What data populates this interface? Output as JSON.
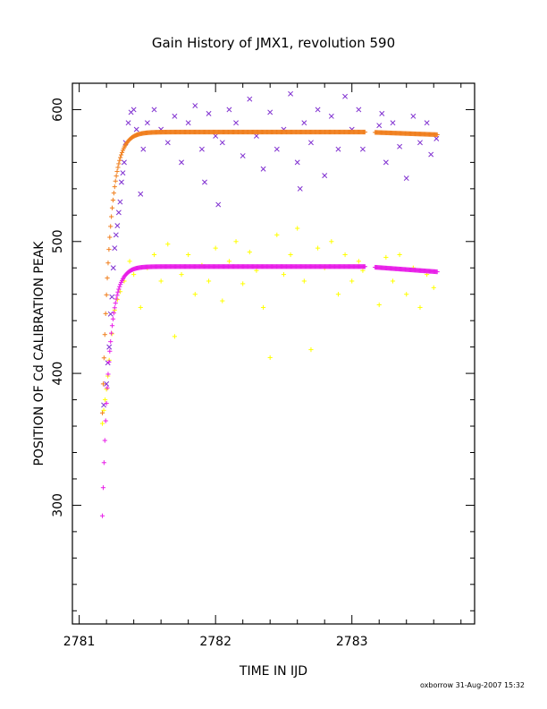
{
  "chart_data": {
    "type": "scatter",
    "title": "Gain History of JMX1, revolution 590",
    "xlabel": "TIME IN IJD",
    "ylabel": "POSITION OF Cd CALIBRATION PEAK",
    "xlim": [
      2780.95,
      2783.9
    ],
    "ylim": [
      210,
      620
    ],
    "xticks": [
      2781,
      2782,
      2783
    ],
    "yticks": [
      300,
      400,
      500,
      600
    ],
    "grid": false,
    "series": [
      {
        "marker": "x",
        "color": "#7f2fd0",
        "points": [
          [
            2781.18,
            376
          ],
          [
            2781.2,
            392
          ],
          [
            2781.21,
            408
          ],
          [
            2781.22,
            420
          ],
          [
            2781.23,
            445
          ],
          [
            2781.24,
            458
          ],
          [
            2781.25,
            480
          ],
          [
            2781.26,
            495
          ],
          [
            2781.27,
            505
          ],
          [
            2781.28,
            512
          ],
          [
            2781.29,
            522
          ],
          [
            2781.3,
            530
          ],
          [
            2781.31,
            545
          ],
          [
            2781.32,
            552
          ],
          [
            2781.33,
            560
          ],
          [
            2781.34,
            575
          ],
          [
            2781.36,
            590
          ],
          [
            2781.38,
            598
          ],
          [
            2781.4,
            600
          ],
          [
            2781.42,
            585
          ],
          [
            2781.45,
            536
          ],
          [
            2781.47,
            570
          ],
          [
            2781.5,
            590
          ],
          [
            2781.55,
            600
          ],
          [
            2781.6,
            585
          ],
          [
            2781.65,
            575
          ],
          [
            2781.7,
            595
          ],
          [
            2781.75,
            560
          ],
          [
            2781.8,
            590
          ],
          [
            2781.85,
            603
          ],
          [
            2781.9,
            570
          ],
          [
            2781.92,
            545
          ],
          [
            2781.95,
            597
          ],
          [
            2782.0,
            580
          ],
          [
            2782.02,
            528
          ],
          [
            2782.05,
            575
          ],
          [
            2782.1,
            600
          ],
          [
            2782.15,
            590
          ],
          [
            2782.2,
            565
          ],
          [
            2782.25,
            608
          ],
          [
            2782.3,
            580
          ],
          [
            2782.35,
            555
          ],
          [
            2782.4,
            598
          ],
          [
            2782.45,
            570
          ],
          [
            2782.5,
            585
          ],
          [
            2782.55,
            612
          ],
          [
            2782.6,
            560
          ],
          [
            2782.62,
            540
          ],
          [
            2782.65,
            590
          ],
          [
            2782.7,
            575
          ],
          [
            2782.75,
            600
          ],
          [
            2782.8,
            550
          ],
          [
            2782.85,
            595
          ],
          [
            2782.9,
            570
          ],
          [
            2782.95,
            610
          ],
          [
            2783.0,
            585
          ],
          [
            2783.05,
            600
          ],
          [
            2783.08,
            570
          ],
          [
            2783.2,
            588
          ],
          [
            2783.22,
            597
          ],
          [
            2783.25,
            560
          ],
          [
            2783.3,
            590
          ],
          [
            2783.35,
            572
          ],
          [
            2783.4,
            548
          ],
          [
            2783.45,
            595
          ],
          [
            2783.5,
            575
          ],
          [
            2783.55,
            590
          ],
          [
            2783.58,
            566
          ],
          [
            2783.62,
            578
          ]
        ]
      },
      {
        "marker": "+",
        "color": "#ffff00",
        "points": [
          [
            2781.17,
            362
          ],
          [
            2781.18,
            372
          ],
          [
            2781.19,
            380
          ],
          [
            2781.2,
            388
          ],
          [
            2781.21,
            398
          ],
          [
            2781.22,
            410
          ],
          [
            2781.24,
            430
          ],
          [
            2781.26,
            448
          ],
          [
            2781.28,
            456
          ],
          [
            2781.3,
            462
          ],
          [
            2781.33,
            470
          ],
          [
            2781.37,
            485
          ],
          [
            2781.4,
            475
          ],
          [
            2781.45,
            450
          ],
          [
            2781.5,
            480
          ],
          [
            2781.55,
            490
          ],
          [
            2781.6,
            470
          ],
          [
            2781.65,
            498
          ],
          [
            2781.7,
            428
          ],
          [
            2781.75,
            475
          ],
          [
            2781.8,
            490
          ],
          [
            2781.85,
            460
          ],
          [
            2781.9,
            482
          ],
          [
            2781.95,
            470
          ],
          [
            2782.0,
            495
          ],
          [
            2782.05,
            455
          ],
          [
            2782.1,
            485
          ],
          [
            2782.15,
            500
          ],
          [
            2782.2,
            468
          ],
          [
            2782.25,
            492
          ],
          [
            2782.3,
            478
          ],
          [
            2782.35,
            450
          ],
          [
            2782.4,
            412
          ],
          [
            2782.45,
            505
          ],
          [
            2782.5,
            475
          ],
          [
            2782.55,
            490
          ],
          [
            2782.6,
            510
          ],
          [
            2782.65,
            470
          ],
          [
            2782.7,
            418
          ],
          [
            2782.75,
            495
          ],
          [
            2782.8,
            480
          ],
          [
            2782.85,
            500
          ],
          [
            2782.9,
            460
          ],
          [
            2782.95,
            490
          ],
          [
            2783.0,
            470
          ],
          [
            2783.05,
            485
          ],
          [
            2783.08,
            478
          ],
          [
            2783.2,
            452
          ],
          [
            2783.25,
            488
          ],
          [
            2783.3,
            470
          ],
          [
            2783.35,
            490
          ],
          [
            2783.4,
            460
          ],
          [
            2783.45,
            480
          ],
          [
            2783.5,
            450
          ],
          [
            2783.55,
            475
          ],
          [
            2783.6,
            465
          ]
        ]
      },
      {
        "marker": "+",
        "color": "#f07f1e",
        "fit": true,
        "segments": [
          [
            2781.17,
            2783.1
          ],
          [
            2783.17,
            2783.63
          ]
        ],
        "start": 370,
        "plateau": 583,
        "tau": 0.055,
        "drift_after": 2783.1,
        "drift_end": 581
      },
      {
        "marker": "+",
        "color": "#e81ee8",
        "fit": true,
        "segments": [
          [
            2781.17,
            2783.1
          ],
          [
            2783.17,
            2783.63
          ]
        ],
        "start": 292,
        "plateau": 481,
        "tau": 0.05,
        "drift_after": 2783.1,
        "drift_end": 477
      }
    ]
  },
  "footer": {
    "credit": "oxborrow 31-Aug-2007 15:32"
  }
}
